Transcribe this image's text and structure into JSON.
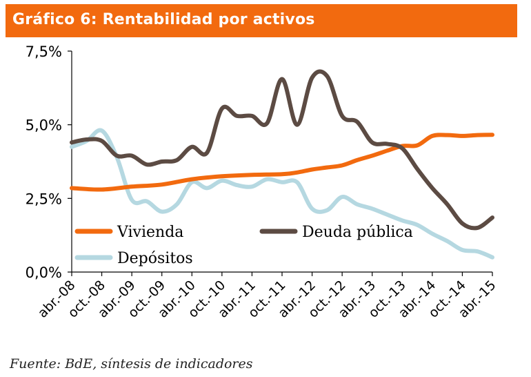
{
  "chart_data": {
    "type": "line",
    "title": "Gráfico 6: Rentabilidad por activos",
    "source": "Fuente: BdE, síntesis de indicadores",
    "ylim": [
      0,
      7.5
    ],
    "yticks": [
      "0,0%",
      "2,5%",
      "5,0%",
      "7,5%"
    ],
    "ytick_values": [
      0,
      2.5,
      5.0,
      7.5
    ],
    "xlim": [
      0,
      14
    ],
    "categories": [
      "abr.-08",
      "oct.-08",
      "abr.-09",
      "oct.-09",
      "abr.-10",
      "oct.-10",
      "abr.-11",
      "oct.-11",
      "abr.-12",
      "oct.-12",
      "abr.-13",
      "oct.-13",
      "abr.-14",
      "oct.-14",
      "abr.-15"
    ],
    "series": [
      {
        "name": "Vivienda",
        "color": "#f26a0f",
        "x": [
          0,
          1,
          2,
          3,
          4,
          5,
          6,
          7,
          7.5,
          8,
          8.5,
          9,
          9.5,
          10,
          10.5,
          11,
          11.5,
          12,
          12.5,
          13,
          13.5,
          14
        ],
        "values": [
          2.85,
          2.8,
          2.9,
          2.97,
          3.15,
          3.25,
          3.3,
          3.32,
          3.38,
          3.48,
          3.55,
          3.62,
          3.8,
          3.95,
          4.12,
          4.28,
          4.3,
          4.62,
          4.65,
          4.62,
          4.65,
          4.66
        ]
      },
      {
        "name": "Deuda pública",
        "color": "#5c4b43",
        "x": [
          0,
          0.5,
          1,
          1.5,
          2,
          2.5,
          3,
          3.5,
          4,
          4.5,
          5,
          5.5,
          6,
          6.5,
          7,
          7.5,
          8,
          8.5,
          9,
          9.5,
          10,
          10.5,
          11,
          11.5,
          12,
          12.5,
          13,
          13.5,
          14
        ],
        "values": [
          4.4,
          4.5,
          4.45,
          3.95,
          3.95,
          3.65,
          3.75,
          3.8,
          4.25,
          4.05,
          5.55,
          5.3,
          5.3,
          5.05,
          6.55,
          5.0,
          6.6,
          6.65,
          5.3,
          5.1,
          4.4,
          4.35,
          4.2,
          3.5,
          2.85,
          2.3,
          1.65,
          1.5,
          1.85
        ]
      },
      {
        "name": "Depósitos",
        "color": "#b5d8e1",
        "x": [
          0,
          0.5,
          1,
          1.5,
          2,
          2.5,
          3,
          3.5,
          4,
          4.5,
          5,
          5.5,
          6,
          6.5,
          7,
          7.5,
          8,
          8.5,
          9,
          9.5,
          10,
          10.5,
          11,
          11.5,
          12,
          12.5,
          13,
          13.5,
          14
        ],
        "values": [
          4.25,
          4.45,
          4.8,
          3.9,
          2.45,
          2.4,
          2.05,
          2.3,
          3.05,
          2.85,
          3.1,
          2.95,
          2.9,
          3.15,
          3.05,
          3.05,
          2.15,
          2.1,
          2.55,
          2.3,
          2.15,
          1.95,
          1.75,
          1.6,
          1.3,
          1.05,
          0.75,
          0.7,
          0.5
        ]
      }
    ],
    "legend": [
      {
        "label": "Vivienda",
        "color": "#f26a0f"
      },
      {
        "label": "Deuda pública",
        "color": "#5c4b43"
      },
      {
        "label": "Depósitos",
        "color": "#b5d8e1"
      }
    ]
  }
}
